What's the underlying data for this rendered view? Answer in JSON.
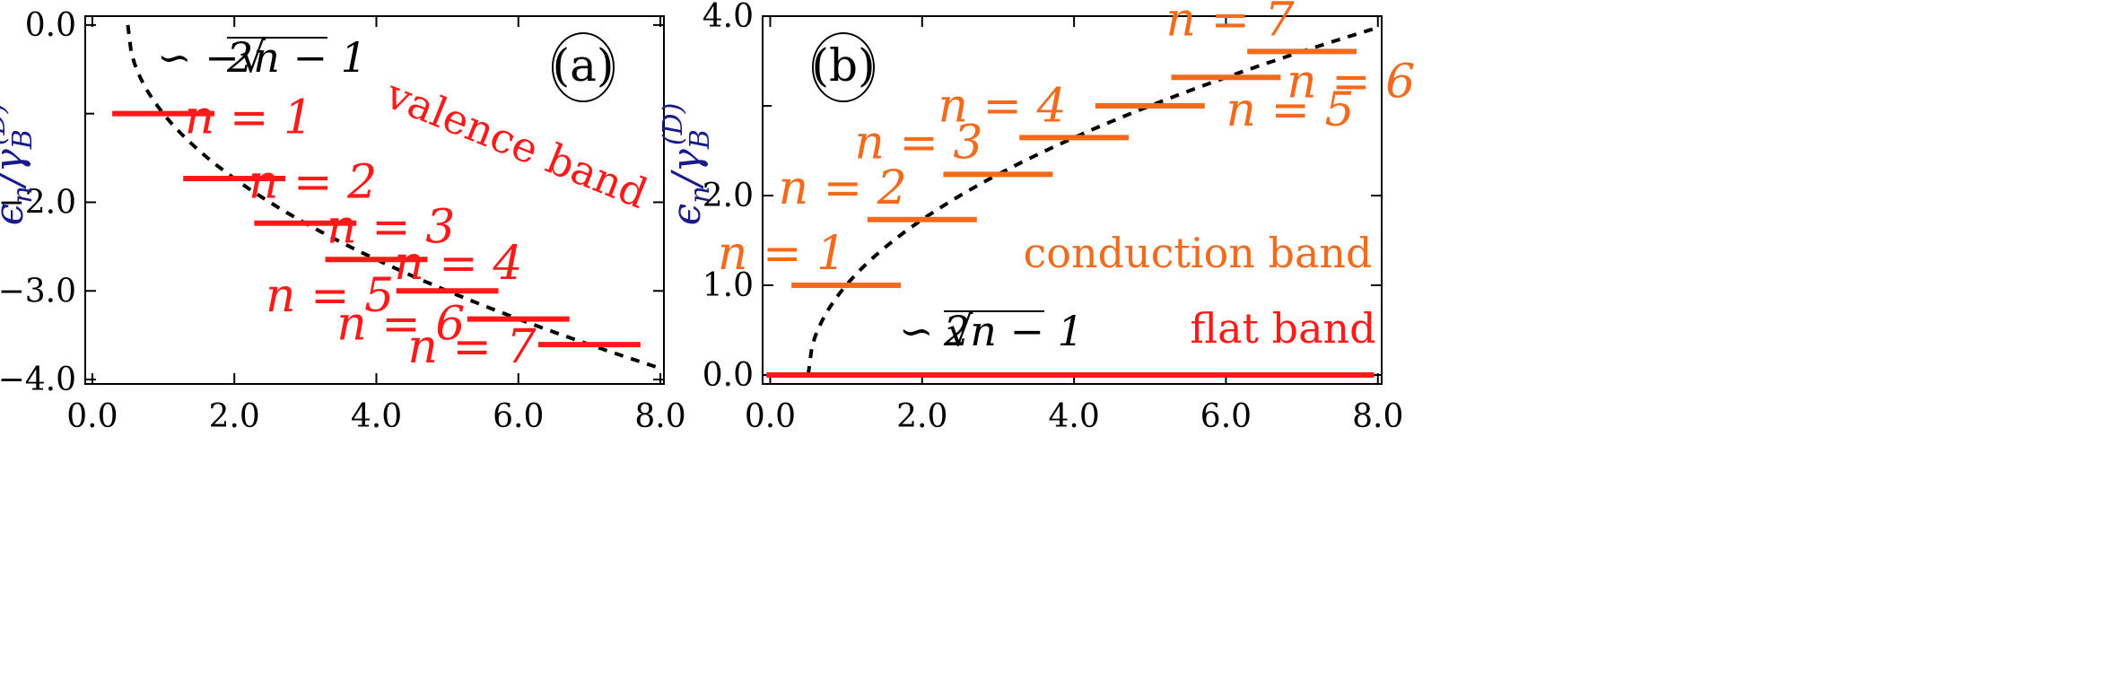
{
  "chart_data": [
    {
      "panel": "a",
      "type": "line",
      "panel_label": "(a)",
      "ylabel": "ε_n/γ_B^(D)",
      "ylabel_main": "ϵ",
      "ylabel_sub": "n",
      "ylabel_slash": "/γ",
      "ylabel_sub2": "B",
      "ylabel_sup": "(D)",
      "xlim": [
        -0.1,
        8.05
      ],
      "ylim": [
        -4.05,
        0.1
      ],
      "x_ticks": [
        0.0,
        2.0,
        4.0,
        6.0,
        8.0
      ],
      "x_tick_labels": [
        "0.0",
        "2.0",
        "4.0",
        "6.0",
        "8.0"
      ],
      "y_ticks": [
        0.0,
        -2.0,
        -3.0,
        -4.0
      ],
      "y_tick_labels": [
        "0.0",
        "−2.0",
        "−3.0",
        "−4.0"
      ],
      "y_minor_ticks": [
        -1.0
      ],
      "curve": {
        "label": "∼ −√(2n − 1)",
        "formula": "-sqrt(2x-1)",
        "x_start": 0.5,
        "x_end": 8.0,
        "style": "dashed",
        "color": "#000000"
      },
      "curve_label_prefix": "∽ −",
      "curve_label_radicand": "2n − 1",
      "band_label": "valence band",
      "band_color": "#ff1a1a",
      "levels": [
        {
          "n": 1,
          "label": "n = 1",
          "center": 1.0,
          "energy": -1.0
        },
        {
          "n": 2,
          "label": "n = 2",
          "center": 2.0,
          "energy": -1.732
        },
        {
          "n": 3,
          "label": "n = 3",
          "center": 3.0,
          "energy": -2.236
        },
        {
          "n": 4,
          "label": "n = 4",
          "center": 4.0,
          "energy": -2.646
        },
        {
          "n": 5,
          "label": "n = 5",
          "center": 5.0,
          "energy": -3.0
        },
        {
          "n": 6,
          "label": "n = 6",
          "center": 6.0,
          "energy": -3.317
        },
        {
          "n": 7,
          "label": "n = 7",
          "center": 7.0,
          "energy": -3.606
        }
      ],
      "level_half_width": 0.72
    },
    {
      "panel": "b",
      "type": "line",
      "panel_label": "(b)",
      "ylabel": "ε_n/γ_B^(D)",
      "ylabel_main": "ϵ",
      "ylabel_sub": "n",
      "ylabel_slash": "/γ",
      "ylabel_sub2": "B",
      "ylabel_sup": "(D)",
      "xlim": [
        -0.1,
        8.05
      ],
      "ylim": [
        -0.1,
        4.0
      ],
      "x_ticks": [
        0.0,
        2.0,
        4.0,
        6.0,
        8.0
      ],
      "x_tick_labels": [
        "0.0",
        "2.0",
        "4.0",
        "6.0",
        "8.0"
      ],
      "y_ticks": [
        0.0,
        1.0,
        2.0,
        4.0
      ],
      "y_tick_labels": [
        "0.0",
        "1.0",
        "2.0",
        "4.0"
      ],
      "y_minor_ticks": [
        3.0
      ],
      "curve": {
        "label": "∼ √(2n − 1)",
        "formula": "sqrt(2x-1)",
        "x_start": 0.5,
        "x_end": 8.0,
        "style": "dashed",
        "color": "#000000"
      },
      "curve_label_prefix": "∽ ",
      "curve_label_radicand": "2n − 1",
      "band_label": "conduction band",
      "band_color": "#f26b1d",
      "flat_band": {
        "label": "flat band",
        "energy": 0.0,
        "x_start": -0.05,
        "x_end": 7.95,
        "color": "#ff1a1a"
      },
      "levels": [
        {
          "n": 1,
          "label": "n = 1",
          "center": 1.0,
          "energy": 1.0
        },
        {
          "n": 2,
          "label": "n = 2",
          "center": 2.0,
          "energy": 1.732
        },
        {
          "n": 3,
          "label": "n = 3",
          "center": 3.0,
          "energy": 2.236
        },
        {
          "n": 4,
          "label": "n = 4",
          "center": 4.0,
          "energy": 2.646
        },
        {
          "n": 5,
          "label": "n = 5",
          "center": 5.0,
          "energy": 3.0
        },
        {
          "n": 6,
          "label": "n = 6",
          "center": 6.0,
          "energy": 3.317
        },
        {
          "n": 7,
          "label": "n = 7",
          "center": 7.0,
          "energy": 3.606
        }
      ],
      "level_half_width": 0.72
    }
  ]
}
